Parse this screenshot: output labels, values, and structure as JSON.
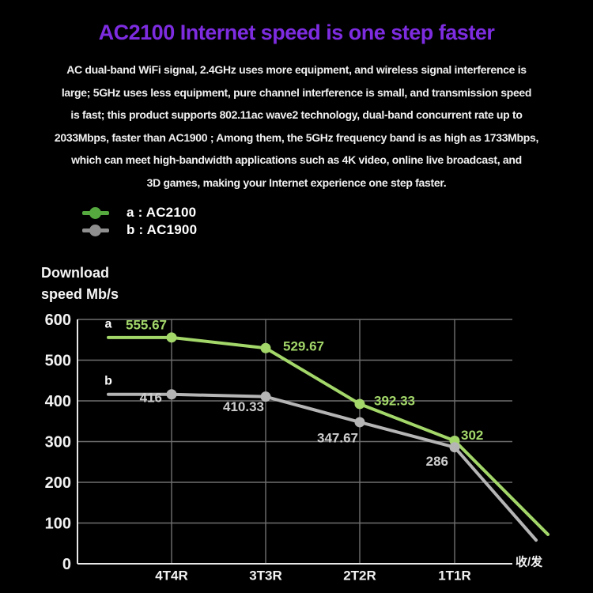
{
  "title": {
    "text": "AC2100 Internet speed is one step faster",
    "color": "#7d2ce0"
  },
  "description": {
    "lines": [
      "AC dual-band WiFi signal, 2.4GHz uses more equipment, and wireless signal interference is",
      "large; 5GHz uses less equipment, pure channel interference is small, and transmission speed",
      "is fast; this product supports 802.11ac wave2 technology, dual-band concurrent rate up to",
      "2033Mbps, faster than AC1900 ; Among them, the 5GHz frequency band is as high as 1733Mbps,",
      "which can meet high-bandwidth applications such as 4K video, online live broadcast, and",
      "3D games, making your Internet experience one step faster."
    ]
  },
  "y_axis_title": {
    "lines": [
      "Download",
      "speed Mb/s"
    ]
  },
  "chart_data": {
    "type": "line",
    "title": "",
    "xlabel": "",
    "ylabel": "Download speed Mb/s",
    "categories": [
      "4T4R",
      "3T3R",
      "2T2R",
      "1T1R"
    ],
    "x_axis_end_label": "收/发",
    "ylim": [
      0,
      600
    ],
    "yticks": [
      0,
      100,
      200,
      300,
      400,
      500,
      600
    ],
    "grid": true,
    "legend_position": "top-left",
    "series": [
      {
        "key": "a",
        "name": "a : AC2100",
        "line_label": "a",
        "color": "#a3d76a",
        "label_color": "#a3d76a",
        "legend_color": "#55a93e",
        "values": [
          555.67,
          529.67,
          392.33,
          302
        ],
        "point_labels": [
          "555.67",
          "529.67",
          "392.33",
          "302"
        ],
        "trailing_value": 72
      },
      {
        "key": "b",
        "name": "b : AC1900",
        "line_label": "b",
        "color": "#b5b5b5",
        "label_color": "#cdcdcd",
        "legend_color": "#8f8f8f",
        "values": [
          416,
          410.33,
          347.67,
          286
        ],
        "point_labels": [
          "416",
          "410.33",
          "347.67",
          "286"
        ],
        "trailing_value": 58
      }
    ],
    "colors": {
      "grid": "#6f6f6f",
      "axis": "#e8e8e8",
      "tick_text": "#f2f2f2"
    }
  }
}
